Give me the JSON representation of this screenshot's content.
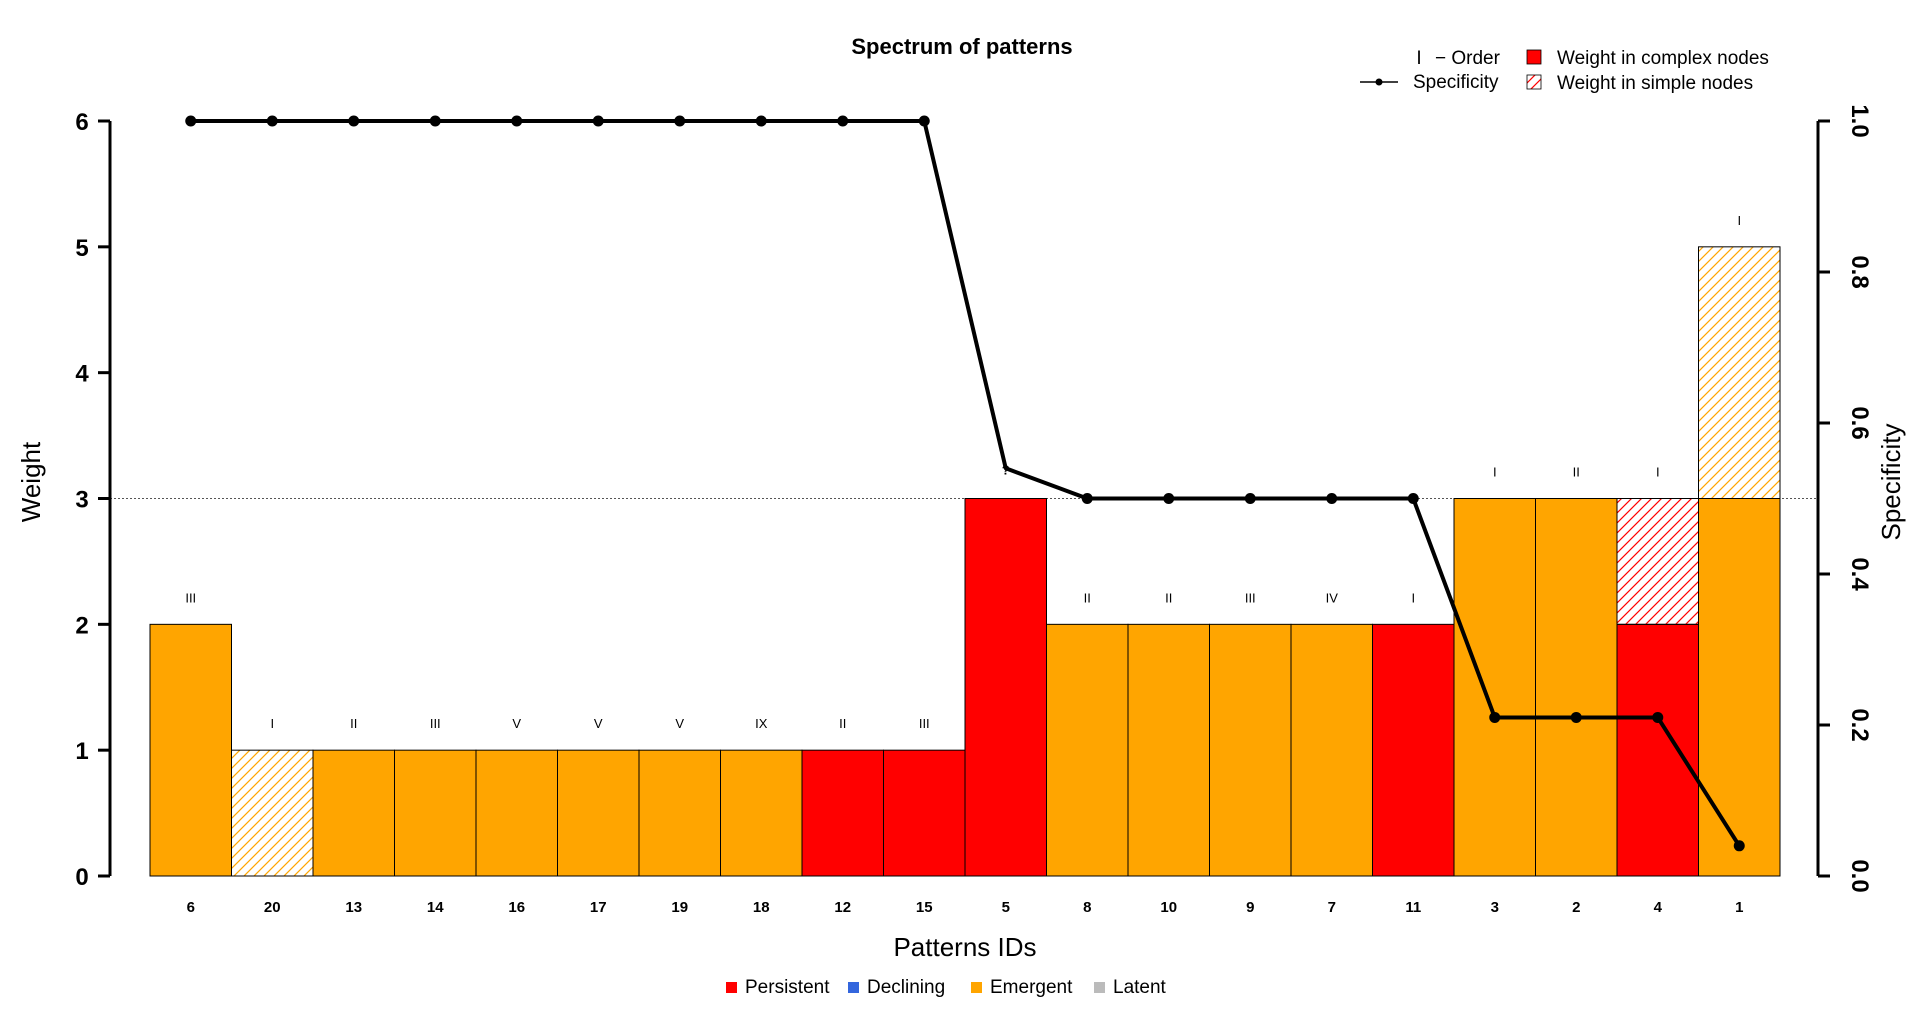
{
  "chart_data": {
    "type": "bar",
    "title": "Spectrum of patterns",
    "xlabel": "Patterns IDs",
    "ylabel": "Weight",
    "y2label": "Specificity",
    "ylim": [
      0,
      6
    ],
    "y2lim": [
      0,
      1
    ],
    "y_ticks": [
      "0",
      "1",
      "2",
      "3",
      "4",
      "5",
      "6"
    ],
    "y2_ticks": [
      "0.0",
      "0.2",
      "0.4",
      "0.6",
      "0.8",
      "1.0"
    ],
    "reference_line": 3,
    "categories": [
      "6",
      "20",
      "13",
      "14",
      "16",
      "17",
      "19",
      "18",
      "12",
      "15",
      "5",
      "8",
      "10",
      "9",
      "7",
      "11",
      "3",
      "2",
      "4",
      "1"
    ],
    "complex_weight": [
      2,
      0,
      1,
      1,
      1,
      1,
      1,
      1,
      1,
      1,
      3,
      2,
      2,
      2,
      2,
      2,
      3,
      3,
      2,
      3
    ],
    "simple_weight": [
      0,
      1,
      0,
      0,
      0,
      0,
      0,
      0,
      0,
      0,
      0,
      0,
      0,
      0,
      0,
      0,
      0,
      0,
      1,
      2
    ],
    "status": [
      "Emergent",
      "Emergent",
      "Emergent",
      "Emergent",
      "Emergent",
      "Emergent",
      "Emergent",
      "Emergent",
      "Persistent",
      "Persistent",
      "Persistent",
      "Emergent",
      "Emergent",
      "Emergent",
      "Emergent",
      "Persistent",
      "Emergent",
      "Emergent",
      "Persistent",
      "Emergent"
    ],
    "order": [
      "III",
      "I",
      "II",
      "III",
      "V",
      "V",
      "V",
      "IX",
      "II",
      "III",
      "",
      "II",
      "II",
      "III",
      "IV",
      "I",
      "I",
      "II",
      "I",
      "I"
    ],
    "specificity": [
      1.0,
      1.0,
      1.0,
      1.0,
      1.0,
      1.0,
      1.0,
      1.0,
      1.0,
      1.0,
      0.54,
      0.5,
      0.5,
      0.5,
      0.5,
      0.5,
      0.21,
      0.21,
      0.21,
      0.04
    ],
    "specificity_point_5_marker": "?",
    "top_legend": {
      "order_symbol": "I",
      "order_label": "− Order",
      "specificity_label": "Specificity",
      "complex_label": "Weight in complex nodes",
      "simple_label": "Weight in simple nodes"
    },
    "status_legend": [
      {
        "label": "Persistent",
        "color": "#ff0000"
      },
      {
        "label": "Declining",
        "color": "#3366dd"
      },
      {
        "label": "Emergent",
        "color": "#ffa500"
      },
      {
        "label": "Latent",
        "color": "#bbbbbb"
      }
    ],
    "colors": {
      "Persistent": "#ff0000",
      "Emergent": "#ffa500",
      "Declining": "#3366dd",
      "Latent": "#bbbbbb"
    }
  }
}
